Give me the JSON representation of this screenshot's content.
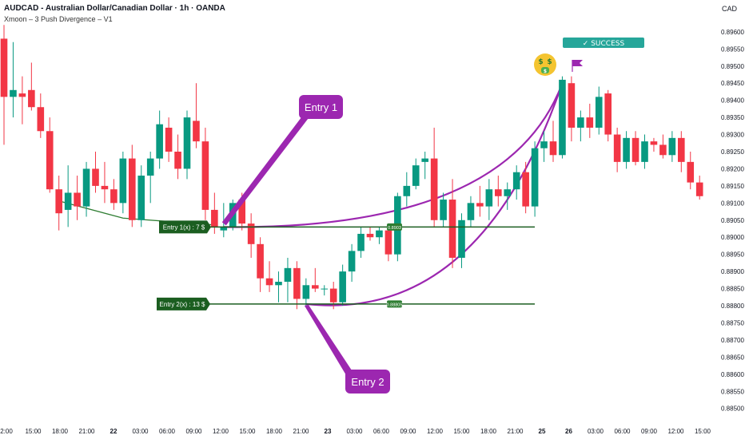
{
  "header": {
    "title": "AUDCAD - Australian Dollar/Canadian Dollar · 1h · OANDA",
    "indicator": "Xmoon – 3 Push Divergence – V1",
    "currency": "CAD"
  },
  "chart_data": {
    "type": "candlestick",
    "ylim": [
      0.8849,
      0.8963
    ],
    "y_ticks": [
      "0.89600",
      "0.89550",
      "0.89500",
      "0.89450",
      "0.89400",
      "0.89350",
      "0.89300",
      "0.89250",
      "0.89200",
      "0.89150",
      "0.89100",
      "0.89050",
      "0.89000",
      "0.88950",
      "0.88900",
      "0.88850",
      "0.88800",
      "0.88750",
      "0.88700",
      "0.88650",
      "0.88600",
      "0.88550",
      "0.88500"
    ],
    "x_ticks": [
      "2:00",
      "15:00",
      "18:00",
      "21:00",
      "22",
      "03:00",
      "06:00",
      "09:00",
      "12:00",
      "15:00",
      "18:00",
      "21:00",
      "23",
      "03:00",
      "06:00",
      "09:00",
      "12:00",
      "15:00",
      "18:00",
      "21:00",
      "25",
      "26",
      "03:00",
      "06:00",
      "09:00",
      "12:00",
      "15:00"
    ],
    "bold_x_ticks": [
      "22",
      "23",
      "25",
      "26"
    ],
    "colors": {
      "up": "#089981",
      "down": "#f23645",
      "purple": "#9c27b0",
      "green": "#1b5e20",
      "success": "#26a69a"
    },
    "candles": [
      {
        "o": 0.8958,
        "h": 0.8962,
        "l": 0.8927,
        "c": 0.8941
      },
      {
        "o": 0.8941,
        "h": 0.8957,
        "l": 0.8935,
        "c": 0.8943
      },
      {
        "o": 0.8942,
        "h": 0.8947,
        "l": 0.8933,
        "c": 0.8941
      },
      {
        "o": 0.8943,
        "h": 0.8951,
        "l": 0.8937,
        "c": 0.8938
      },
      {
        "o": 0.8938,
        "h": 0.8942,
        "l": 0.8929,
        "c": 0.8931
      },
      {
        "o": 0.8931,
        "h": 0.8935,
        "l": 0.8913,
        "c": 0.8914
      },
      {
        "o": 0.8914,
        "h": 0.8918,
        "l": 0.8902,
        "c": 0.8907
      },
      {
        "o": 0.8908,
        "h": 0.8921,
        "l": 0.8903,
        "c": 0.8913
      },
      {
        "o": 0.8913,
        "h": 0.8918,
        "l": 0.8905,
        "c": 0.8909
      },
      {
        "o": 0.8909,
        "h": 0.8922,
        "l": 0.8906,
        "c": 0.892
      },
      {
        "o": 0.892,
        "h": 0.8925,
        "l": 0.8913,
        "c": 0.8915
      },
      {
        "o": 0.8915,
        "h": 0.8922,
        "l": 0.891,
        "c": 0.8914
      },
      {
        "o": 0.8914,
        "h": 0.8917,
        "l": 0.8908,
        "c": 0.891
      },
      {
        "o": 0.891,
        "h": 0.8925,
        "l": 0.8907,
        "c": 0.8923
      },
      {
        "o": 0.8923,
        "h": 0.8927,
        "l": 0.8903,
        "c": 0.8905
      },
      {
        "o": 0.8905,
        "h": 0.8921,
        "l": 0.8903,
        "c": 0.8918
      },
      {
        "o": 0.8918,
        "h": 0.8925,
        "l": 0.891,
        "c": 0.8923
      },
      {
        "o": 0.8923,
        "h": 0.8937,
        "l": 0.892,
        "c": 0.8933
      },
      {
        "o": 0.8932,
        "h": 0.8935,
        "l": 0.8922,
        "c": 0.8925
      },
      {
        "o": 0.8925,
        "h": 0.893,
        "l": 0.8917,
        "c": 0.892
      },
      {
        "o": 0.892,
        "h": 0.8937,
        "l": 0.8917,
        "c": 0.8935
      },
      {
        "o": 0.8934,
        "h": 0.8945,
        "l": 0.8926,
        "c": 0.8928
      },
      {
        "o": 0.8928,
        "h": 0.8932,
        "l": 0.8905,
        "c": 0.8908
      },
      {
        "o": 0.8908,
        "h": 0.8913,
        "l": 0.8901,
        "c": 0.8903
      },
      {
        "o": 0.8902,
        "h": 0.891,
        "l": 0.89,
        "c": 0.8903
      },
      {
        "o": 0.8903,
        "h": 0.8911,
        "l": 0.8902,
        "c": 0.891
      },
      {
        "o": 0.8911,
        "h": 0.8913,
        "l": 0.8902,
        "c": 0.8904
      },
      {
        "o": 0.8904,
        "h": 0.8907,
        "l": 0.8894,
        "c": 0.8898
      },
      {
        "o": 0.8898,
        "h": 0.89,
        "l": 0.8884,
        "c": 0.8888
      },
      {
        "o": 0.8888,
        "h": 0.8893,
        "l": 0.8884,
        "c": 0.8886
      },
      {
        "o": 0.8886,
        "h": 0.889,
        "l": 0.8881,
        "c": 0.8887
      },
      {
        "o": 0.8887,
        "h": 0.8894,
        "l": 0.8881,
        "c": 0.8891
      },
      {
        "o": 0.8891,
        "h": 0.8893,
        "l": 0.8879,
        "c": 0.8882
      },
      {
        "o": 0.8882,
        "h": 0.8888,
        "l": 0.888,
        "c": 0.8886
      },
      {
        "o": 0.8886,
        "h": 0.8891,
        "l": 0.8884,
        "c": 0.8885
      },
      {
        "o": 0.8885,
        "h": 0.8886,
        "l": 0.8883,
        "c": 0.8885
      },
      {
        "o": 0.8885,
        "h": 0.8887,
        "l": 0.8879,
        "c": 0.8881
      },
      {
        "o": 0.8881,
        "h": 0.8892,
        "l": 0.888,
        "c": 0.889
      },
      {
        "o": 0.889,
        "h": 0.8898,
        "l": 0.8887,
        "c": 0.8896
      },
      {
        "o": 0.8896,
        "h": 0.8903,
        "l": 0.8894,
        "c": 0.8901
      },
      {
        "o": 0.8901,
        "h": 0.8903,
        "l": 0.8899,
        "c": 0.89
      },
      {
        "o": 0.89,
        "h": 0.8903,
        "l": 0.8898,
        "c": 0.8902
      },
      {
        "o": 0.8902,
        "h": 0.8904,
        "l": 0.8893,
        "c": 0.8895
      },
      {
        "o": 0.8895,
        "h": 0.8913,
        "l": 0.8893,
        "c": 0.8912
      },
      {
        "o": 0.8912,
        "h": 0.8919,
        "l": 0.8909,
        "c": 0.8915
      },
      {
        "o": 0.8915,
        "h": 0.8923,
        "l": 0.8914,
        "c": 0.8921
      },
      {
        "o": 0.8922,
        "h": 0.8925,
        "l": 0.8917,
        "c": 0.8923
      },
      {
        "o": 0.8923,
        "h": 0.8932,
        "l": 0.8903,
        "c": 0.8905
      },
      {
        "o": 0.8905,
        "h": 0.8913,
        "l": 0.8903,
        "c": 0.8911
      },
      {
        "o": 0.8911,
        "h": 0.8917,
        "l": 0.8891,
        "c": 0.8894
      },
      {
        "o": 0.8894,
        "h": 0.8907,
        "l": 0.8891,
        "c": 0.8905
      },
      {
        "o": 0.8905,
        "h": 0.8912,
        "l": 0.8903,
        "c": 0.891
      },
      {
        "o": 0.891,
        "h": 0.8915,
        "l": 0.8906,
        "c": 0.8909
      },
      {
        "o": 0.8909,
        "h": 0.8917,
        "l": 0.8905,
        "c": 0.8914
      },
      {
        "o": 0.8914,
        "h": 0.8918,
        "l": 0.8909,
        "c": 0.8912
      },
      {
        "o": 0.8912,
        "h": 0.8916,
        "l": 0.8908,
        "c": 0.8914
      },
      {
        "o": 0.8914,
        "h": 0.8921,
        "l": 0.8911,
        "c": 0.8919
      },
      {
        "o": 0.8919,
        "h": 0.8922,
        "l": 0.8907,
        "c": 0.8909
      },
      {
        "o": 0.8909,
        "h": 0.8928,
        "l": 0.8906,
        "c": 0.8926
      },
      {
        "o": 0.8926,
        "h": 0.8931,
        "l": 0.8922,
        "c": 0.8928
      },
      {
        "o": 0.8928,
        "h": 0.8934,
        "l": 0.8922,
        "c": 0.8924
      },
      {
        "o": 0.8924,
        "h": 0.8947,
        "l": 0.8923,
        "c": 0.8946
      },
      {
        "o": 0.8945,
        "h": 0.8947,
        "l": 0.8928,
        "c": 0.8932
      },
      {
        "o": 0.8932,
        "h": 0.8937,
        "l": 0.8928,
        "c": 0.8935
      },
      {
        "o": 0.8935,
        "h": 0.8939,
        "l": 0.8929,
        "c": 0.8932
      },
      {
        "o": 0.8932,
        "h": 0.8944,
        "l": 0.893,
        "c": 0.8941
      },
      {
        "o": 0.8942,
        "h": 0.8943,
        "l": 0.8928,
        "c": 0.893
      },
      {
        "o": 0.893,
        "h": 0.8932,
        "l": 0.8919,
        "c": 0.8922
      },
      {
        "o": 0.8922,
        "h": 0.8931,
        "l": 0.892,
        "c": 0.8929
      },
      {
        "o": 0.8929,
        "h": 0.8931,
        "l": 0.8921,
        "c": 0.8922
      },
      {
        "o": 0.8922,
        "h": 0.893,
        "l": 0.892,
        "c": 0.8928
      },
      {
        "o": 0.8928,
        "h": 0.8929,
        "l": 0.8925,
        "c": 0.8927
      },
      {
        "o": 0.8927,
        "h": 0.893,
        "l": 0.8923,
        "c": 0.8924
      },
      {
        "o": 0.8924,
        "h": 0.8931,
        "l": 0.8922,
        "c": 0.8929
      },
      {
        "o": 0.8929,
        "h": 0.8931,
        "l": 0.8919,
        "c": 0.8922
      },
      {
        "o": 0.8922,
        "h": 0.8925,
        "l": 0.8914,
        "c": 0.8916
      },
      {
        "o": 0.8916,
        "h": 0.8918,
        "l": 0.8911,
        "c": 0.8912
      }
    ],
    "levels": [
      {
        "price": 0.8903,
        "tag": "0.8903",
        "label": "Entry 1(x) : 7 $"
      },
      {
        "price": 0.88805,
        "tag": "0.88805",
        "label": "Entry 2(x) : 13 $"
      }
    ],
    "callouts": [
      "Entry 1",
      "Entry 2"
    ],
    "success_text": "✓ SUCCESS",
    "emoji": "🤑"
  }
}
